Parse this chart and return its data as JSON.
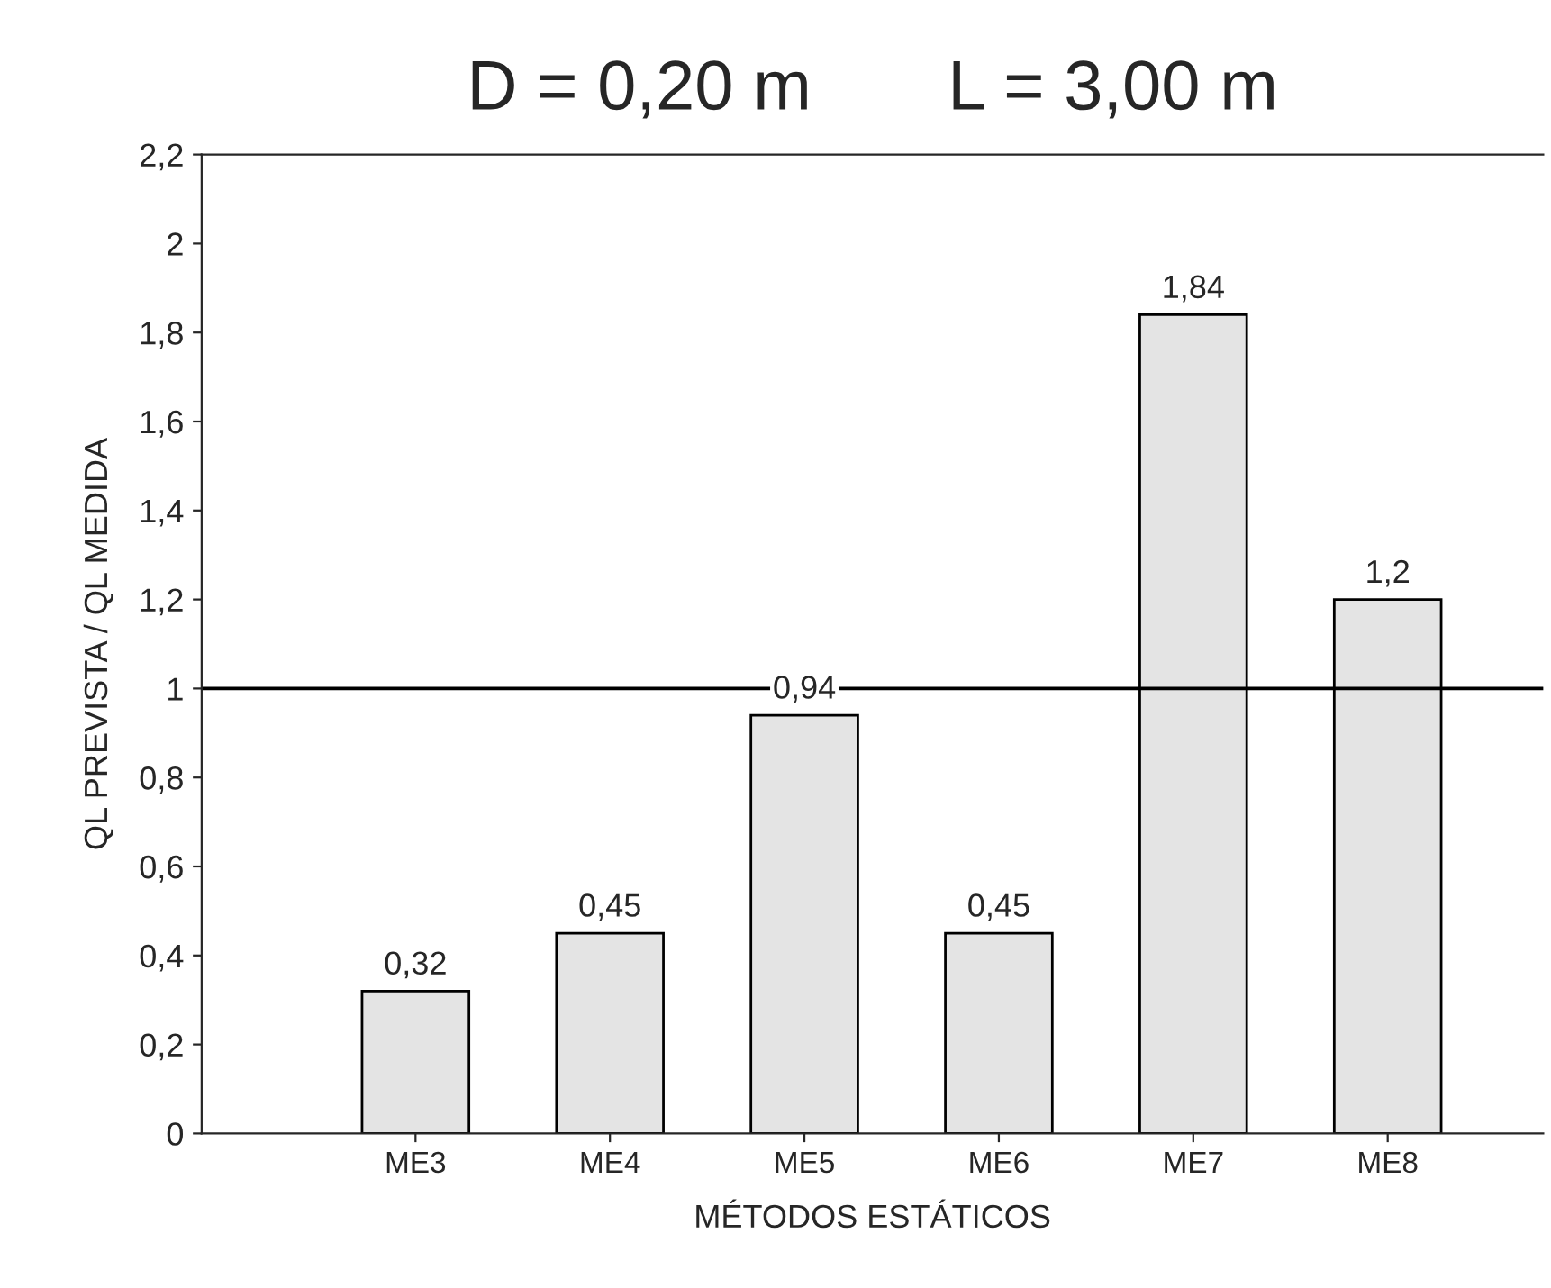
{
  "chart_data": {
    "type": "bar",
    "title": "D = 0,20 m       L = 3,00 m",
    "xlabel": "MÉTODOS ESTÁTICOS",
    "ylabel": "QL PREVISTA / QL MEDIDA",
    "categories": [
      "ME3",
      "ME4",
      "ME5",
      "ME6",
      "ME7",
      "ME8"
    ],
    "values": [
      0.32,
      0.45,
      0.94,
      0.45,
      1.84,
      1.2
    ],
    "value_labels": [
      "0,32",
      "0,45",
      "0,94",
      "0,45",
      "1,84",
      "1,2"
    ],
    "color": "#e4e4e4",
    "ylim": [
      0,
      2.2
    ],
    "yticks": [
      0,
      {
        "value": 0.2,
        "label": "0,2"
      },
      {
        "value": 0.4,
        "label": "0,4"
      },
      {
        "value": 0.6,
        "label": "0,6"
      },
      {
        "value": 0.8,
        "label": "0,8"
      },
      1,
      {
        "value": 1.2,
        "label": "1,2"
      },
      {
        "value": 1.4,
        "label": "1,4"
      },
      {
        "value": 1.6,
        "label": "1,6"
      },
      {
        "value": 1.8,
        "label": "1,8"
      },
      2,
      {
        "value": 2.2,
        "label": "2,2"
      }
    ],
    "ref_lines": [
      {
        "axis": "y",
        "value": 1,
        "color": "#000000"
      }
    ],
    "grid": false,
    "legend": false
  }
}
